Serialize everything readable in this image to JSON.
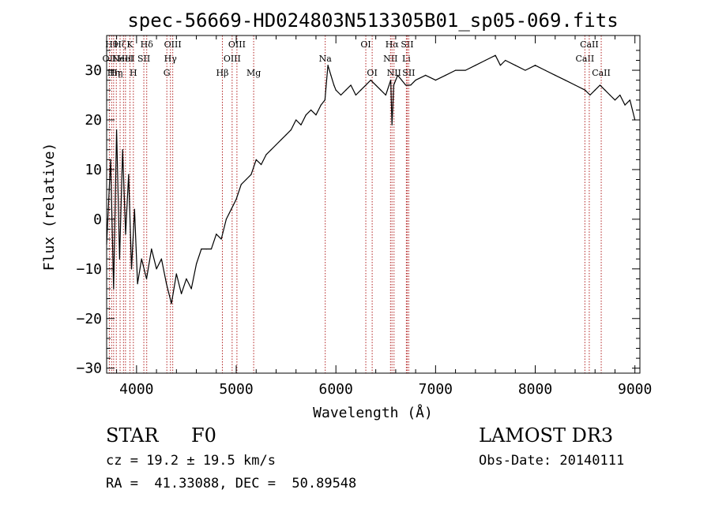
{
  "chart_data": {
    "type": "line",
    "title": "spec-56669-HD024803N513305B01_sp05-069.fits",
    "xlabel": "Wavelength (Å)",
    "ylabel": "Flux (relative)",
    "xlim": [
      3700,
      9050
    ],
    "ylim": [
      -31,
      37
    ],
    "xticks": [
      "4000",
      "5000",
      "6000",
      "7000",
      "8000",
      "9000"
    ],
    "xtick_values": [
      4000,
      5000,
      6000,
      7000,
      8000,
      9000
    ],
    "yticks": [
      "−30",
      "−20",
      "−10",
      "0",
      "10",
      "20",
      "30"
    ],
    "ytick_values": [
      -30,
      -20,
      -10,
      0,
      10,
      20,
      30
    ],
    "grid": false,
    "line_color": "#000000",
    "marker_color": "#b22222",
    "series": [
      {
        "x": [
          3700,
          3740,
          3770,
          3800,
          3830,
          3860,
          3890,
          3920,
          3950,
          3980,
          4010,
          4050,
          4100,
          4150,
          4200,
          4250,
          4300,
          4350,
          4400,
          4450,
          4500,
          4550,
          4600,
          4650,
          4700,
          4750,
          4800,
          4850,
          4900,
          4950,
          5000,
          5050,
          5100,
          5150,
          5200,
          5250,
          5300,
          5350,
          5400,
          5450,
          5500,
          5550,
          5600,
          5650,
          5700,
          5750,
          5800,
          5850,
          5890,
          5920,
          5950,
          5980,
          6000,
          6050,
          6100,
          6150,
          6200,
          6250,
          6300,
          6350,
          6400,
          6450,
          6500,
          6550,
          6563,
          6580,
          6620,
          6660,
          6700,
          6750,
          6800,
          6900,
          7000,
          7100,
          7200,
          7300,
          7400,
          7500,
          7600,
          7650,
          7700,
          7800,
          7900,
          8000,
          8100,
          8200,
          8300,
          8400,
          8500,
          8550,
          8600,
          8650,
          8700,
          8750,
          8800,
          8850,
          8900,
          8950,
          9000
        ],
        "y": [
          -5,
          12,
          -14,
          18,
          -8,
          14,
          -3,
          9,
          -10,
          2,
          -13,
          -8,
          -12,
          -6,
          -10,
          -8,
          -13,
          -17,
          -11,
          -15,
          -12,
          -14,
          -9,
          -6,
          -6,
          -6,
          -3,
          -4,
          0,
          2,
          4,
          7,
          8,
          9,
          12,
          11,
          13,
          14,
          15,
          16,
          17,
          18,
          20,
          19,
          21,
          22,
          21,
          23,
          24,
          31,
          29,
          27,
          26,
          25,
          26,
          27,
          25,
          26,
          27,
          28,
          27,
          26,
          25,
          28,
          19,
          27,
          29,
          28,
          27,
          27,
          28,
          29,
          28,
          29,
          30,
          30,
          31,
          32,
          33,
          31,
          32,
          31,
          30,
          31,
          30,
          29,
          28,
          27,
          26,
          25,
          26,
          27,
          26,
          25,
          24,
          25,
          23,
          24,
          20
        ]
      }
    ],
    "lines": [
      {
        "x": 3727,
        "label": "OII",
        "row": 2
      },
      {
        "x": 3750,
        "label": "Hθ",
        "row": 1
      },
      {
        "x": 3770,
        "label": "Hη",
        "row": 3
      },
      {
        "x": 3797,
        "label": "Hη",
        "row": 3
      },
      {
        "x": 3835,
        "label": "Hζ",
        "row": 1
      },
      {
        "x": 3869,
        "label": "NeIII",
        "row": 2
      },
      {
        "x": 3889,
        "label": "HeI",
        "row": 2
      },
      {
        "x": 3934,
        "label": "K",
        "row": 1
      },
      {
        "x": 3968,
        "label": "H",
        "row": 3
      },
      {
        "x": 4073,
        "label": "SII",
        "row": 2
      },
      {
        "x": 4102,
        "label": "Hδ",
        "row": 1
      },
      {
        "x": 4304,
        "label": "G",
        "row": 3
      },
      {
        "x": 4340,
        "label": "Hγ",
        "row": 2
      },
      {
        "x": 4363,
        "label": "OIII",
        "row": 1
      },
      {
        "x": 4861,
        "label": "Hβ",
        "row": 3
      },
      {
        "x": 4959,
        "label": "OIII",
        "row": 2
      },
      {
        "x": 5007,
        "label": "OIII",
        "row": 1
      },
      {
        "x": 5175,
        "label": "Mg",
        "row": 3
      },
      {
        "x": 5893,
        "label": "Na",
        "row": 2
      },
      {
        "x": 6300,
        "label": "OI",
        "row": 1
      },
      {
        "x": 6364,
        "label": "OI",
        "row": 3
      },
      {
        "x": 6548,
        "label": "NII",
        "row": 2
      },
      {
        "x": 6563,
        "label": "Hα",
        "row": 1
      },
      {
        "x": 6583,
        "label": "NII",
        "row": 3
      },
      {
        "x": 6707,
        "label": "Li",
        "row": 2
      },
      {
        "x": 6716,
        "label": "SII",
        "row": 1
      },
      {
        "x": 6731,
        "label": "SII",
        "row": 3
      },
      {
        "x": 8498,
        "label": "CaII",
        "row": 2
      },
      {
        "x": 8542,
        "label": "CaII",
        "row": 1
      },
      {
        "x": 8662,
        "label": "CaII",
        "row": 3
      }
    ]
  },
  "info": {
    "class_label": "STAR",
    "subclass": "F0",
    "survey": "LAMOST DR3",
    "cz": "cz = 19.2 ± 19.5 km/s",
    "obs_date": "Obs-Date: 20140111",
    "coords": "RA =  41.33088, DEC =  50.89548"
  }
}
